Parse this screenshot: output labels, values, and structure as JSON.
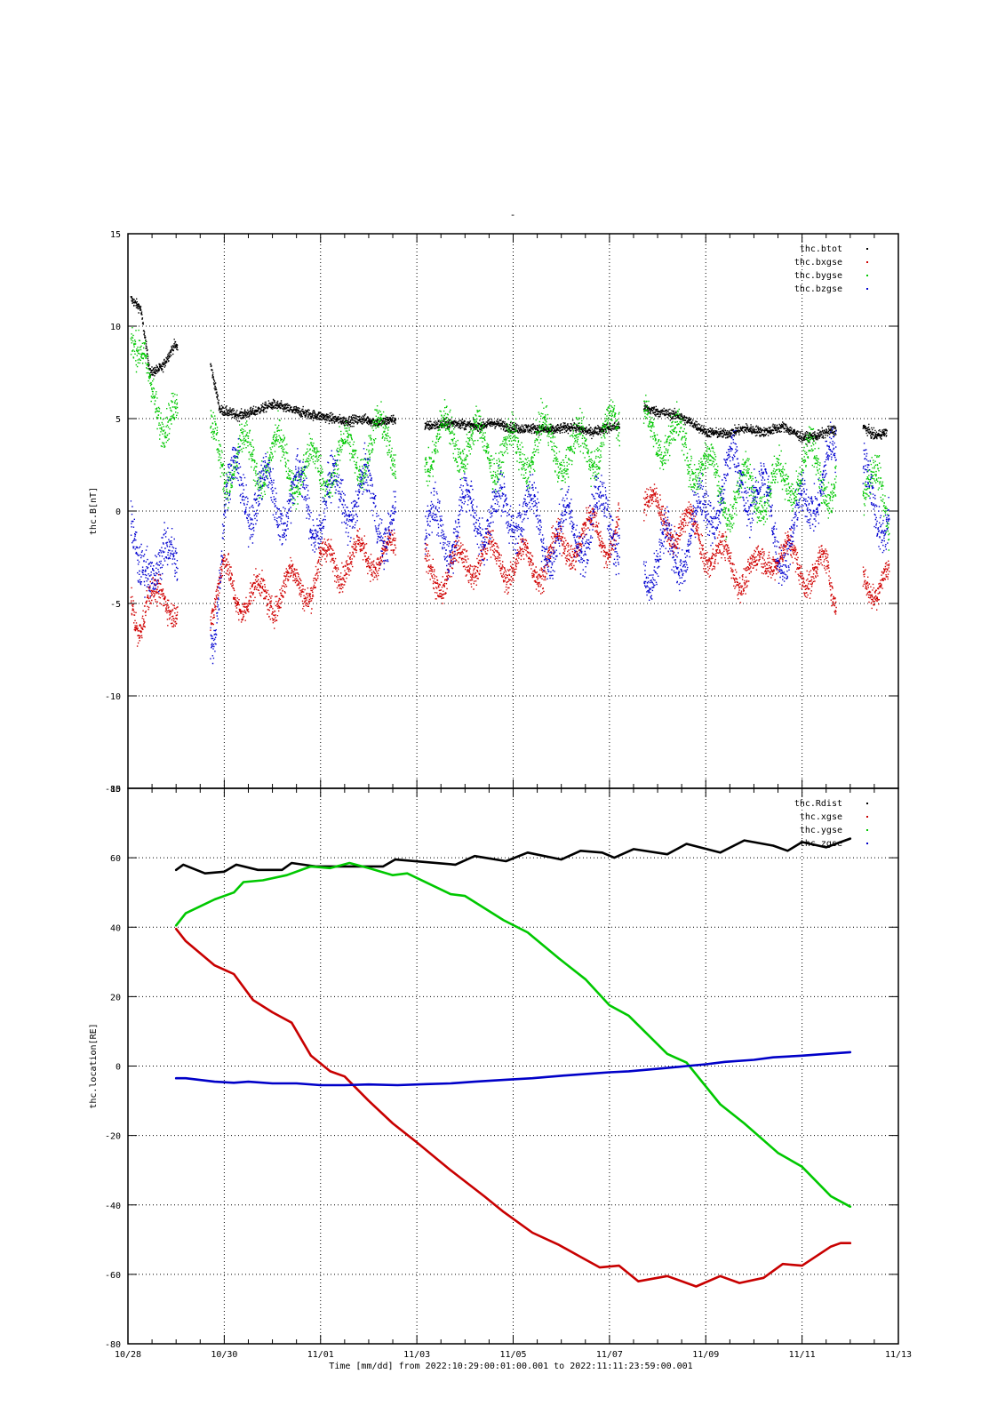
{
  "figure": {
    "top_mark": "-",
    "xlabel": "Time [mm/dd]  from 2022:10:29:00:01:00.001  to  2022:11:11:23:59:00.001",
    "xlim": [
      "10/28",
      "11/13"
    ],
    "x_ticks_major": [
      "10/28",
      "10/30",
      "11/01",
      "11/03",
      "11/05",
      "11/07",
      "11/09",
      "11/11",
      "11/13"
    ],
    "grid": true
  },
  "chart_data": [
    {
      "type": "scatter",
      "ylabel": "thc.B[nT]",
      "ylim": [
        -15,
        15
      ],
      "y_ticks": [
        15,
        10,
        5,
        0,
        -5,
        -10,
        -15
      ],
      "legend_position": "top-right",
      "data_gaps": [
        [
          "10/29.02",
          "10/29.70"
        ],
        [
          "11/02.55",
          "11/03.15"
        ],
        [
          "11/07.20",
          "11/07.70"
        ],
        [
          "11/11.70",
          "11/12.25"
        ]
      ],
      "series": [
        {
          "name": "thc.btot",
          "color": "#000000",
          "x": [
            "10/28.05",
            "10/28.25",
            "10/28.45",
            "10/28.70",
            "10/28.95",
            "10/29.70",
            "10/29.90",
            "10/30.30",
            "10/30.60",
            "10/31.00",
            "10/31.40",
            "10/31.70",
            "11/01.10",
            "11/01.50",
            "11/01.90",
            "11/02.20",
            "11/02.50",
            "11/03.15",
            "11/03.40",
            "11/03.80",
            "11/04.20",
            "11/04.60",
            "11/05.00",
            "11/05.40",
            "11/05.80",
            "11/06.20",
            "11/06.60",
            "11/06.90",
            "11/07.15",
            "11/07.70",
            "11/08.00",
            "11/08.40",
            "11/08.70",
            "11/09.00",
            "11/09.40",
            "11/09.80",
            "11/10.20",
            "11/10.60",
            "11/11.00",
            "11/11.30",
            "11/11.60",
            "11/12.25",
            "11/12.50",
            "11/12.75"
          ],
          "y": [
            11.5,
            11.0,
            7.5,
            7.8,
            9.0,
            8.0,
            5.5,
            5.2,
            5.4,
            5.8,
            5.5,
            5.3,
            5.1,
            4.9,
            5.0,
            4.8,
            5.0,
            4.6,
            4.7,
            4.8,
            4.6,
            4.8,
            4.5,
            4.5,
            4.4,
            4.6,
            4.3,
            4.5,
            4.6,
            5.6,
            5.4,
            5.2,
            4.8,
            4.3,
            4.2,
            4.5,
            4.3,
            4.6,
            4.0,
            4.1,
            4.4,
            4.6,
            4.1,
            4.3
          ]
        },
        {
          "name": "thc.bxgse",
          "color": "#d00000",
          "x": [
            "10/28.05",
            "10/28.20",
            "10/28.40",
            "10/28.60",
            "10/28.80",
            "10/29.00",
            "10/29.75",
            "10/30.00",
            "10/30.30",
            "10/30.60",
            "10/31.00",
            "10/31.40",
            "10/31.80",
            "11/01.20",
            "11/01.60",
            "11/02.00",
            "11/02.40",
            "11/03.20",
            "11/03.50",
            "11/03.90",
            "11/04.30",
            "11/04.70",
            "11/05.10",
            "11/05.50",
            "11/05.90",
            "11/06.30",
            "11/06.70",
            "11/07.00",
            "11/07.75",
            "11/08.00",
            "11/08.40",
            "11/08.80",
            "11/09.20",
            "11/09.60",
            "11/10.00",
            "11/10.40",
            "11/10.80",
            "11/11.20",
            "11/11.50",
            "11/11.65",
            "11/12.30",
            "11/12.55",
            "11/12.80"
          ],
          "y": [
            -5.0,
            -6.0,
            -4.2,
            -5.3,
            -5.0,
            -4.5,
            -5.2,
            -3.5,
            -4.5,
            -4.8,
            -4.5,
            -4.0,
            -3.8,
            -2.5,
            -2.8,
            -2.2,
            -2.5,
            -3.2,
            -3.5,
            -2.8,
            -2.4,
            -2.6,
            -2.9,
            -2.8,
            -2.2,
            -1.5,
            -1.0,
            -1.5,
            1.0,
            -0.5,
            -0.8,
            -1.2,
            -2.5,
            -3.0,
            -3.5,
            -2.0,
            -2.8,
            -3.2,
            -3.4,
            -4.5,
            -3.5,
            -3.8,
            -4.0
          ]
        },
        {
          "name": "thc.bygse",
          "color": "#00c800",
          "x": [
            "10/28.05",
            "10/28.20",
            "10/28.40",
            "10/28.60",
            "10/28.80",
            "10/29.00",
            "10/29.75",
            "10/30.00",
            "10/30.30",
            "10/30.60",
            "10/31.00",
            "10/31.40",
            "10/31.80",
            "11/01.20",
            "11/01.60",
            "11/02.00",
            "11/02.40",
            "11/03.20",
            "11/03.50",
            "11/03.90",
            "11/04.30",
            "11/04.70",
            "11/05.10",
            "11/05.50",
            "11/05.90",
            "11/06.30",
            "11/06.70",
            "11/07.00",
            "11/07.75",
            "11/08.00",
            "11/08.40",
            "11/08.80",
            "11/09.20",
            "11/09.60",
            "11/10.00",
            "11/10.40",
            "11/10.80",
            "11/11.20",
            "11/11.50",
            "11/11.65",
            "11/12.30",
            "11/12.55",
            "11/12.80"
          ],
          "y": [
            10.5,
            8.5,
            6.5,
            6.0,
            5.5,
            4.8,
            3.5,
            2.5,
            3.0,
            2.5,
            3.0,
            2.5,
            2.0,
            2.5,
            3.0,
            3.5,
            4.0,
            3.5,
            3.8,
            4.0,
            3.5,
            3.2,
            3.0,
            3.8,
            3.5,
            3.0,
            3.8,
            4.2,
            4.2,
            4.5,
            3.5,
            3.0,
            1.5,
            0.5,
            1.5,
            1.0,
            2.0,
            2.5,
            1.8,
            1.5,
            2.0,
            1.0,
            -0.5
          ]
        },
        {
          "name": "thc.bzgse",
          "color": "#0000d0",
          "x": [
            "10/28.05",
            "10/28.20",
            "10/28.40",
            "10/28.60",
            "10/28.80",
            "10/29.00",
            "10/29.75",
            "10/30.00",
            "10/30.30",
            "10/30.60",
            "10/31.00",
            "10/31.40",
            "10/31.80",
            "11/01.20",
            "11/01.60",
            "11/02.00",
            "11/02.40",
            "11/03.20",
            "11/03.50",
            "11/03.90",
            "11/04.30",
            "11/04.70",
            "11/05.10",
            "11/05.50",
            "11/05.90",
            "11/06.30",
            "11/06.70",
            "11/07.00",
            "11/07.75",
            "11/08.00",
            "11/08.40",
            "11/08.80",
            "11/09.20",
            "11/09.60",
            "11/10.00",
            "11/10.40",
            "11/10.80",
            "11/11.20",
            "11/11.50",
            "11/11.65",
            "11/12.30",
            "11/12.55",
            "11/12.80"
          ],
          "y": [
            -2.0,
            -4.0,
            -1.5,
            -3.0,
            -3.5,
            -2.5,
            -6.5,
            0.5,
            1.5,
            1.0,
            0.5,
            1.0,
            0.0,
            0.5,
            1.0,
            0.5,
            -0.5,
            -1.5,
            -1.0,
            -0.5,
            0.0,
            -0.5,
            0.5,
            -1.0,
            -1.5,
            -1.0,
            -0.5,
            0.0,
            -2.5,
            -3.0,
            -2.0,
            -1.0,
            1.0,
            2.0,
            1.5,
            -1.0,
            -2.0,
            1.5,
            2.0,
            2.2,
            1.0,
            0.5,
            0.0
          ]
        }
      ]
    },
    {
      "type": "line",
      "ylabel": "thc.location[RE]",
      "ylim": [
        -80,
        80
      ],
      "y_ticks": [
        80,
        60,
        40,
        20,
        0,
        -20,
        -40,
        -60,
        -80
      ],
      "legend_position": "top-right",
      "series": [
        {
          "name": "thc.Rdist",
          "color": "#000000",
          "x": [
            "10/29.00",
            "10/29.15",
            "10/29.60",
            "10/30.00",
            "10/30.25",
            "10/30.70",
            "10/31.20",
            "10/31.40",
            "10/31.90",
            "11/02.30",
            "11/02.55",
            "11/03.80",
            "11/04.20",
            "11/04.85",
            "11/05.30",
            "11/06.00",
            "11/06.40",
            "11/06.85",
            "11/07.10",
            "11/07.50",
            "11/08.20",
            "11/08.60",
            "11/09.30",
            "11/09.80",
            "11/10.40",
            "11/10.70",
            "11/11.00",
            "11/11.50",
            "11/12.00"
          ],
          "y": [
            56.5,
            58.0,
            55.5,
            56.0,
            58.0,
            56.5,
            56.5,
            58.5,
            57.5,
            57.5,
            59.5,
            58.0,
            60.5,
            59.0,
            61.5,
            59.5,
            62.0,
            61.5,
            60.0,
            62.5,
            61.0,
            64.0,
            61.5,
            65.0,
            63.5,
            62.0,
            64.5,
            63.0,
            65.5
          ]
        },
        {
          "name": "thc.xgse",
          "color": "#c80000",
          "x": [
            "10/29.00",
            "10/29.20",
            "10/29.80",
            "10/30.20",
            "10/30.60",
            "10/31.00",
            "10/31.40",
            "10/31.80",
            "11/01.20",
            "11/01.50",
            "11/02.00",
            "11/02.50",
            "11/03.00",
            "11/03.70",
            "11/04.40",
            "11/04.80",
            "11/05.40",
            "11/05.95",
            "11/06.40",
            "11/06.80",
            "11/07.20",
            "11/07.60",
            "11/08.20",
            "11/08.80",
            "11/09.30",
            "11/09.70",
            "11/10.20",
            "11/10.60",
            "11/11.00",
            "11/11.60",
            "11/11.80",
            "11/12.00"
          ],
          "y": [
            39.5,
            36.0,
            29.0,
            26.5,
            19.0,
            15.5,
            12.5,
            3.0,
            -1.5,
            -3.0,
            -10.0,
            -16.5,
            -22.0,
            -30.0,
            -37.5,
            -42.0,
            -48.0,
            -51.5,
            -55.0,
            -58.0,
            -57.5,
            -62.0,
            -60.5,
            -63.5,
            -60.5,
            -62.5,
            -61.0,
            -57.0,
            -57.5,
            -52.0,
            -51.0,
            -51.0
          ]
        },
        {
          "name": "thc.ygse",
          "color": "#00c800",
          "x": [
            "10/29.00",
            "10/29.20",
            "10/29.80",
            "10/30.20",
            "10/30.40",
            "10/30.80",
            "10/31.30",
            "10/31.80",
            "11/01.20",
            "11/01.60",
            "11/02.00",
            "11/02.50",
            "11/02.80",
            "11/03.70",
            "11/04.00",
            "11/04.80",
            "11/05.30",
            "11/05.95",
            "11/06.50",
            "11/07.00",
            "11/07.40",
            "11/08.20",
            "11/08.60",
            "11/09.30",
            "11/09.80",
            "11/10.50",
            "11/11.00",
            "11/11.60",
            "11/12.00"
          ],
          "y": [
            40.5,
            44.0,
            48.0,
            50.0,
            53.0,
            53.5,
            55.0,
            57.5,
            57.0,
            58.5,
            57.0,
            55.0,
            55.5,
            49.5,
            49.0,
            42.0,
            38.5,
            31.0,
            25.0,
            17.5,
            14.5,
            3.5,
            1.0,
            -11.0,
            -16.5,
            -25.0,
            -29.0,
            -37.5,
            -40.5
          ]
        },
        {
          "name": "thc.zgse",
          "color": "#0000c8",
          "x": [
            "10/29.00",
            "10/29.20",
            "10/29.80",
            "10/30.20",
            "10/30.50",
            "10/31.00",
            "10/31.50",
            "11/01.00",
            "11/01.50",
            "11/02.00",
            "11/02.60",
            "11/03.20",
            "11/03.70",
            "11/04.20",
            "11/04.80",
            "11/05.40",
            "11/06.00",
            "11/06.60",
            "11/07.00",
            "11/07.40",
            "11/08.00",
            "11/08.60",
            "11/09.00",
            "11/09.40",
            "11/10.00",
            "11/10.40",
            "11/11.00",
            "11/11.50",
            "11/12.00"
          ],
          "y": [
            -3.5,
            -3.5,
            -4.5,
            -4.8,
            -4.5,
            -5.0,
            -5.0,
            -5.5,
            -5.5,
            -5.3,
            -5.5,
            -5.2,
            -5.0,
            -4.5,
            -4.0,
            -3.5,
            -2.8,
            -2.2,
            -1.8,
            -1.5,
            -0.8,
            0.0,
            0.5,
            1.2,
            1.8,
            2.5,
            3.0,
            3.5,
            4.0
          ]
        }
      ]
    }
  ]
}
